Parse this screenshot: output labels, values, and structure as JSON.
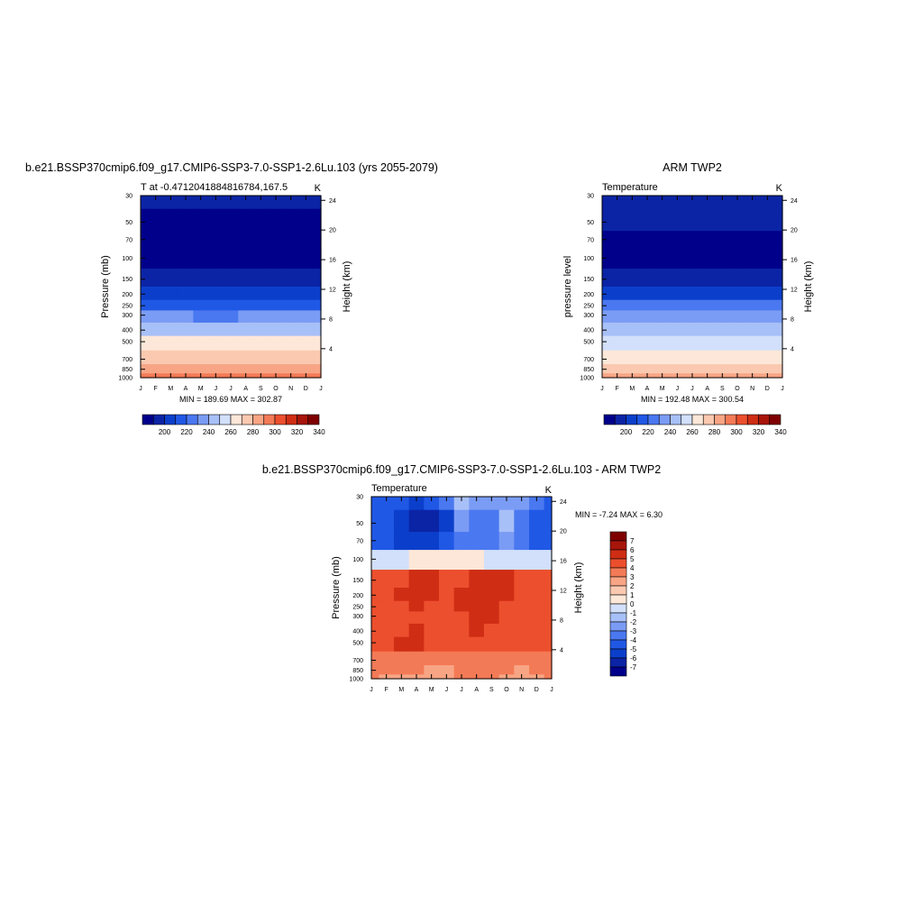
{
  "chart_data": [
    {
      "type": "heatmap",
      "title": "b.e21.BSSP370cmip6.f09_g17.CMIP6-SSP3-7.0-SSP1-2.6Lu.103 (yrs 2055-2079)",
      "left_label": "T at -0.4712041884816784,167.5",
      "right_label": "K",
      "ylabel": "Pressure (mb)",
      "ylabel_right": "Height (km)",
      "x_ticks": [
        "J",
        "F",
        "M",
        "A",
        "M",
        "J",
        "J",
        "A",
        "S",
        "O",
        "N",
        "D",
        "J"
      ],
      "y_ticks": [
        "30",
        "50",
        "70",
        "100",
        "150",
        "200",
        "250",
        "300",
        "400",
        "500",
        "700",
        "850",
        "1000"
      ],
      "y_right_ticks": [
        "24",
        "20",
        "16",
        "12",
        "8",
        "4"
      ],
      "stats": "MIN = 189.69   MAX = 302.87",
      "colorbar": {
        "orientation": "horizontal",
        "labels": [
          "200",
          "220",
          "240",
          "260",
          "280",
          "300",
          "320",
          "340"
        ]
      },
      "pressure_levels": [
        30,
        50,
        70,
        100,
        150,
        200,
        250,
        300,
        400,
        500,
        700,
        850,
        1000
      ],
      "values": [
        [
          201,
          201,
          202,
          203,
          204,
          205,
          205,
          206,
          206,
          205,
          204,
          202,
          201
        ],
        [
          194,
          194,
          195,
          196,
          196,
          197,
          197,
          197,
          196,
          195,
          195,
          195,
          194
        ],
        [
          192,
          192,
          192,
          192,
          193,
          193,
          193,
          193,
          193,
          192,
          192,
          192,
          192
        ],
        [
          193,
          193,
          193,
          193,
          193,
          193,
          193,
          194,
          194,
          194,
          193,
          193,
          193
        ],
        [
          204,
          204,
          204,
          204,
          204,
          204,
          204,
          205,
          205,
          205,
          204,
          204,
          204
        ],
        [
          217,
          217,
          217,
          217,
          216,
          216,
          216,
          217,
          217,
          217,
          217,
          217,
          217
        ],
        [
          229,
          229,
          229,
          229,
          228,
          228,
          228,
          229,
          229,
          229,
          229,
          229,
          229
        ],
        [
          240,
          240,
          240,
          240,
          239,
          239,
          239,
          240,
          240,
          240,
          240,
          240,
          240
        ],
        [
          259,
          259,
          259,
          259,
          258,
          258,
          258,
          259,
          259,
          259,
          259,
          259,
          259
        ],
        [
          272,
          272,
          272,
          272,
          272,
          272,
          272,
          272,
          272,
          272,
          272,
          272,
          272
        ],
        [
          285,
          285,
          285,
          285,
          285,
          285,
          285,
          285,
          285,
          285,
          285,
          285,
          285
        ],
        [
          293,
          293,
          293,
          293,
          293,
          293,
          293,
          293,
          293,
          293,
          293,
          293,
          293
        ],
        [
          301,
          301,
          301,
          301,
          301,
          301,
          301,
          301,
          301,
          301,
          301,
          301,
          301
        ]
      ]
    },
    {
      "type": "heatmap",
      "title": "ARM TWP2",
      "left_label": "Temperature",
      "right_label": "K",
      "ylabel": "pressure level",
      "ylabel_right": "Height (km)",
      "x_ticks": [
        "J",
        "F",
        "M",
        "A",
        "M",
        "J",
        "J",
        "A",
        "S",
        "O",
        "N",
        "D",
        "J"
      ],
      "y_ticks": [
        "30",
        "50",
        "70",
        "100",
        "150",
        "200",
        "250",
        "300",
        "400",
        "500",
        "700",
        "850",
        "1000"
      ],
      "y_right_ticks": [
        "24",
        "20",
        "16",
        "12",
        "8",
        "4"
      ],
      "stats": "MIN = 192.48   MAX = 300.54",
      "colorbar": {
        "orientation": "horizontal",
        "labels": [
          "200",
          "220",
          "240",
          "260",
          "280",
          "300",
          "320",
          "340"
        ]
      },
      "pressure_levels": [
        30,
        50,
        70,
        100,
        150,
        200,
        250,
        300,
        400,
        500,
        700,
        850,
        1000
      ],
      "values": [
        [
          207,
          207,
          207,
          208,
          208,
          208,
          209,
          209,
          209,
          209,
          208,
          207,
          207
        ],
        [
          201,
          200,
          200,
          201,
          202,
          203,
          204,
          204,
          203,
          202,
          201,
          200,
          201
        ],
        [
          195,
          195,
          194,
          194,
          195,
          196,
          196,
          197,
          196,
          195,
          195,
          195,
          195
        ],
        [
          193,
          193,
          193,
          193,
          193,
          193,
          193,
          193,
          193,
          193,
          193,
          193,
          193
        ],
        [
          204,
          204,
          204,
          204,
          204,
          204,
          204,
          204,
          204,
          204,
          204,
          204,
          204
        ],
        [
          219,
          219,
          219,
          219,
          219,
          219,
          219,
          219,
          219,
          219,
          219,
          219,
          219
        ],
        [
          231,
          231,
          231,
          231,
          231,
          231,
          231,
          231,
          231,
          231,
          231,
          231,
          231
        ],
        [
          243,
          243,
          243,
          243,
          243,
          243,
          243,
          243,
          243,
          243,
          243,
          243,
          243
        ],
        [
          258,
          258,
          258,
          258,
          258,
          258,
          258,
          258,
          258,
          258,
          258,
          258,
          258
        ],
        [
          266,
          266,
          266,
          266,
          266,
          266,
          266,
          266,
          266,
          266,
          266,
          266,
          266
        ],
        [
          279,
          279,
          279,
          279,
          279,
          279,
          279,
          279,
          279,
          279,
          279,
          279,
          279
        ],
        [
          288,
          288,
          288,
          288,
          288,
          288,
          288,
          288,
          288,
          288,
          288,
          288,
          288
        ],
        [
          294,
          294,
          294,
          294,
          294,
          294,
          294,
          294,
          294,
          294,
          294,
          294,
          294
        ]
      ]
    },
    {
      "type": "heatmap",
      "title": "b.e21.BSSP370cmip6.f09_g17.CMIP6-SSP3-7.0-SSP1-2.6Lu.103 - ARM TWP2",
      "left_label": "Temperature",
      "right_label": "K",
      "ylabel": "Pressure (mb)",
      "ylabel_right": "Height (km)",
      "x_ticks": [
        "J",
        "F",
        "M",
        "A",
        "M",
        "J",
        "J",
        "A",
        "S",
        "O",
        "N",
        "D",
        "J"
      ],
      "y_ticks": [
        "30",
        "50",
        "70",
        "100",
        "150",
        "200",
        "250",
        "300",
        "400",
        "500",
        "700",
        "850",
        "1000"
      ],
      "y_right_ticks": [
        "24",
        "20",
        "16",
        "12",
        "8",
        "4"
      ],
      "stats": "MIN =  -7.24 MAX =   6.30",
      "colorbar": {
        "orientation": "vertical",
        "labels": [
          "7",
          "6",
          "5",
          "4",
          "3",
          "2",
          "1",
          "0",
          "-1",
          "-2",
          "-3",
          "-4",
          "-5",
          "-6",
          "-7"
        ]
      },
      "pressure_levels": [
        30,
        50,
        70,
        100,
        150,
        200,
        250,
        300,
        400,
        500,
        700,
        850,
        1000
      ],
      "values": [
        [
          -4.8,
          -4.5,
          -4.8,
          -5.2,
          -4.4,
          -3.2,
          -1.5,
          -2.5,
          -3.0,
          -2.5,
          -3.0,
          -3.8,
          -4.5
        ],
        [
          -4.8,
          -5.0,
          -5.5,
          -6.5,
          -6.8,
          -5.5,
          -2.5,
          -3.5,
          -4.0,
          -1.8,
          -3.5,
          -4.2,
          -4.8
        ],
        [
          -4.5,
          -4.8,
          -5.2,
          -5.8,
          -5.8,
          -5.0,
          -3.5,
          -3.8,
          -3.8,
          -2.8,
          -3.8,
          -4.2,
          -4.5
        ],
        [
          -0.5,
          -0.3,
          -0.2,
          0.0,
          0.2,
          0.3,
          0.2,
          0.0,
          -0.3,
          -0.5,
          -0.6,
          -0.5,
          -0.5
        ],
        [
          4.3,
          4.5,
          4.8,
          5.2,
          5.0,
          4.6,
          4.8,
          5.3,
          5.4,
          5.0,
          4.6,
          4.4,
          4.3
        ],
        [
          4.2,
          4.6,
          5.1,
          5.4,
          5.2,
          4.7,
          5.2,
          5.6,
          5.5,
          5.0,
          4.6,
          4.4,
          4.2
        ],
        [
          4.0,
          4.4,
          4.8,
          5.0,
          4.8,
          4.5,
          5.0,
          5.5,
          5.3,
          4.8,
          4.4,
          4.2,
          4.0
        ],
        [
          4.0,
          4.3,
          4.6,
          4.8,
          4.6,
          4.3,
          4.7,
          5.1,
          5.0,
          4.6,
          4.3,
          4.1,
          4.0
        ],
        [
          4.2,
          4.5,
          4.9,
          5.0,
          4.7,
          4.3,
          4.6,
          5.0,
          4.9,
          4.5,
          4.2,
          4.1,
          4.2
        ],
        [
          4.1,
          4.5,
          5.0,
          5.1,
          4.5,
          4.0,
          4.3,
          4.6,
          4.5,
          4.2,
          4.0,
          4.0,
          4.1
        ],
        [
          3.6,
          3.8,
          3.8,
          3.6,
          3.3,
          3.2,
          3.6,
          3.9,
          3.9,
          3.6,
          3.3,
          3.3,
          3.6
        ],
        [
          3.3,
          3.4,
          3.2,
          3.0,
          2.8,
          2.8,
          3.2,
          3.5,
          3.4,
          3.0,
          2.9,
          3.0,
          3.3
        ],
        [
          3.0,
          2.8,
          2.6,
          2.5,
          2.3,
          2.5,
          3.0,
          3.2,
          3.0,
          2.6,
          2.5,
          2.7,
          3.0
        ]
      ]
    }
  ],
  "palettes": {
    "temperature": [
      "#00008b",
      "#0b24a6",
      "#0b3fcb",
      "#2058e6",
      "#4a78f0",
      "#7b9cf4",
      "#a8c0f8",
      "#d2e0fb",
      "#fde7d8",
      "#fbc9b0",
      "#f8a585",
      "#f37a56",
      "#ec4f2d",
      "#cf2d14",
      "#a8150a",
      "#7f0000"
    ],
    "difference": [
      "#00008b",
      "#0b24a6",
      "#0b3fcb",
      "#2058e6",
      "#4a78f0",
      "#7b9cf4",
      "#a8c0f8",
      "#d2e0fb",
      "#fde7d8",
      "#fbc9b0",
      "#f8a585",
      "#f37a56",
      "#ec4f2d",
      "#cf2d14",
      "#a8150a",
      "#7f0000"
    ]
  }
}
